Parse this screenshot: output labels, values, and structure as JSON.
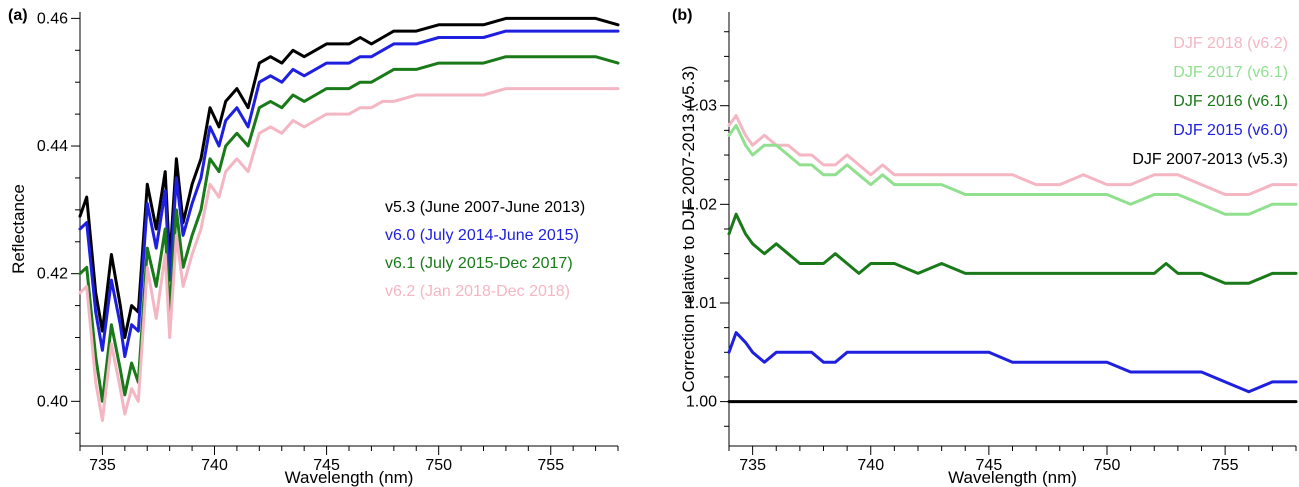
{
  "figure": {
    "panels": [
      "(a)",
      "(b)"
    ]
  },
  "chart_data": [
    {
      "type": "line",
      "panel_label": "(a)",
      "xlabel": "Wavelength (nm)",
      "ylabel": "Reflectance",
      "xlim": [
        734,
        758
      ],
      "ylim": [
        0.393,
        0.461
      ],
      "xticks": [
        735,
        740,
        745,
        750,
        755
      ],
      "yticks": [
        0.4,
        0.42,
        0.44,
        0.46
      ],
      "ytick_labels": [
        "0.40",
        "0.42",
        "0.44",
        "0.46"
      ],
      "legend_position": "center-right",
      "x": [
        734.0,
        734.3,
        734.7,
        735.0,
        735.4,
        735.8,
        736.0,
        736.3,
        736.6,
        737.0,
        737.4,
        737.8,
        738.0,
        738.3,
        738.6,
        739.0,
        739.4,
        739.8,
        740.2,
        740.5,
        741.0,
        741.5,
        742.0,
        742.5,
        743.0,
        743.5,
        744.0,
        744.5,
        745.0,
        745.5,
        746.0,
        746.5,
        747.0,
        747.5,
        748.0,
        749.0,
        750.0,
        751.0,
        752.0,
        753.0,
        754.0,
        755.0,
        756.0,
        757.0,
        758.0
      ],
      "series": [
        {
          "name": "v5.3 (June 2007-June 2013)",
          "color": "#000000",
          "values": [
            0.429,
            0.432,
            0.417,
            0.411,
            0.423,
            0.415,
            0.41,
            0.415,
            0.414,
            0.434,
            0.427,
            0.436,
            0.422,
            0.438,
            0.428,
            0.434,
            0.438,
            0.446,
            0.443,
            0.447,
            0.449,
            0.446,
            0.453,
            0.454,
            0.453,
            0.455,
            0.454,
            0.455,
            0.456,
            0.456,
            0.456,
            0.457,
            0.456,
            0.457,
            0.458,
            0.458,
            0.459,
            0.459,
            0.459,
            0.46,
            0.46,
            0.46,
            0.46,
            0.46,
            0.459
          ]
        },
        {
          "name": "v6.0 (July 2014-June 2015)",
          "color": "#1f1fe0",
          "values": [
            0.427,
            0.428,
            0.414,
            0.408,
            0.419,
            0.412,
            0.407,
            0.412,
            0.411,
            0.431,
            0.424,
            0.433,
            0.419,
            0.435,
            0.426,
            0.431,
            0.435,
            0.443,
            0.44,
            0.444,
            0.446,
            0.443,
            0.45,
            0.451,
            0.45,
            0.452,
            0.451,
            0.452,
            0.453,
            0.453,
            0.453,
            0.454,
            0.454,
            0.455,
            0.456,
            0.456,
            0.457,
            0.457,
            0.457,
            0.458,
            0.458,
            0.458,
            0.458,
            0.458,
            0.458
          ]
        },
        {
          "name": "v6.1 (July 2015-Dec 2017)",
          "color": "#1a7a1a",
          "values": [
            0.42,
            0.421,
            0.407,
            0.4,
            0.412,
            0.405,
            0.401,
            0.406,
            0.403,
            0.424,
            0.418,
            0.427,
            0.414,
            0.43,
            0.421,
            0.426,
            0.43,
            0.438,
            0.436,
            0.44,
            0.442,
            0.44,
            0.446,
            0.447,
            0.446,
            0.448,
            0.447,
            0.448,
            0.449,
            0.449,
            0.449,
            0.45,
            0.45,
            0.451,
            0.452,
            0.452,
            0.453,
            0.453,
            0.453,
            0.454,
            0.454,
            0.454,
            0.454,
            0.454,
            0.453
          ]
        },
        {
          "name": "v6.2 (Jan 2018-Dec 2018)",
          "color": "#f5b6c4",
          "values": [
            0.417,
            0.418,
            0.403,
            0.397,
            0.409,
            0.402,
            0.398,
            0.402,
            0.4,
            0.421,
            0.413,
            0.423,
            0.41,
            0.426,
            0.418,
            0.423,
            0.427,
            0.434,
            0.432,
            0.436,
            0.438,
            0.436,
            0.442,
            0.443,
            0.442,
            0.444,
            0.443,
            0.444,
            0.445,
            0.445,
            0.445,
            0.446,
            0.446,
            0.447,
            0.447,
            0.448,
            0.448,
            0.448,
            0.448,
            0.449,
            0.449,
            0.449,
            0.449,
            0.449,
            0.449
          ]
        }
      ]
    },
    {
      "type": "line",
      "panel_label": "(b)",
      "xlabel": "Wavelength (nm)",
      "ylabel": "Correction relative to DJF 2007-2013 (v5.3)",
      "xlim": [
        734,
        758
      ],
      "ylim": [
        0.9955,
        1.0395
      ],
      "xticks": [
        735,
        740,
        745,
        750,
        755
      ],
      "yticks": [
        1.0,
        1.01,
        1.02,
        1.03
      ],
      "ytick_labels": [
        "1.00",
        "1.01",
        "1.02",
        "1.03"
      ],
      "legend_position": "top-right",
      "x": [
        734.0,
        734.3,
        734.7,
        735.0,
        735.5,
        736.0,
        736.5,
        737.0,
        737.5,
        738.0,
        738.5,
        739.0,
        739.5,
        740.0,
        740.5,
        741.0,
        742.0,
        743.0,
        744.0,
        745.0,
        746.0,
        747.0,
        748.0,
        749.0,
        750.0,
        751.0,
        752.0,
        752.5,
        753.0,
        754.0,
        755.0,
        756.0,
        757.0,
        758.0
      ],
      "series": [
        {
          "name": "DJF 2018 (v6.2)",
          "color": "#f5b6c4",
          "values": [
            1.028,
            1.029,
            1.027,
            1.026,
            1.027,
            1.026,
            1.026,
            1.025,
            1.025,
            1.024,
            1.024,
            1.025,
            1.024,
            1.023,
            1.024,
            1.023,
            1.023,
            1.023,
            1.023,
            1.023,
            1.023,
            1.022,
            1.022,
            1.023,
            1.022,
            1.022,
            1.023,
            1.023,
            1.023,
            1.022,
            1.021,
            1.021,
            1.022,
            1.022
          ]
        },
        {
          "name": "DJF 2017 (v6.1)",
          "color": "#90e090",
          "values": [
            1.027,
            1.028,
            1.026,
            1.025,
            1.026,
            1.026,
            1.025,
            1.024,
            1.024,
            1.023,
            1.023,
            1.024,
            1.023,
            1.022,
            1.023,
            1.022,
            1.022,
            1.022,
            1.021,
            1.021,
            1.021,
            1.021,
            1.021,
            1.021,
            1.021,
            1.02,
            1.021,
            1.021,
            1.021,
            1.02,
            1.019,
            1.019,
            1.02,
            1.02
          ]
        },
        {
          "name": "DJF 2016 (v6.1)",
          "color": "#1a7a1a",
          "values": [
            1.017,
            1.019,
            1.017,
            1.016,
            1.015,
            1.016,
            1.015,
            1.014,
            1.014,
            1.014,
            1.015,
            1.014,
            1.013,
            1.014,
            1.014,
            1.014,
            1.013,
            1.014,
            1.013,
            1.013,
            1.013,
            1.013,
            1.013,
            1.013,
            1.013,
            1.013,
            1.013,
            1.014,
            1.013,
            1.013,
            1.012,
            1.012,
            1.013,
            1.013
          ]
        },
        {
          "name": "DJF 2015 (v6.0)",
          "color": "#1f1fe0",
          "values": [
            1.005,
            1.007,
            1.006,
            1.005,
            1.004,
            1.005,
            1.005,
            1.005,
            1.005,
            1.004,
            1.004,
            1.005,
            1.005,
            1.005,
            1.005,
            1.005,
            1.005,
            1.005,
            1.005,
            1.005,
            1.004,
            1.004,
            1.004,
            1.004,
            1.004,
            1.003,
            1.003,
            1.003,
            1.003,
            1.003,
            1.002,
            1.001,
            1.002,
            1.002
          ]
        },
        {
          "name": "DJF 2007-2013 (v5.3)",
          "color": "#000000",
          "values": [
            1.0,
            1.0,
            1.0,
            1.0,
            1.0,
            1.0,
            1.0,
            1.0,
            1.0,
            1.0,
            1.0,
            1.0,
            1.0,
            1.0,
            1.0,
            1.0,
            1.0,
            1.0,
            1.0,
            1.0,
            1.0,
            1.0,
            1.0,
            1.0,
            1.0,
            1.0,
            1.0,
            1.0,
            1.0,
            1.0,
            1.0,
            1.0,
            1.0,
            1.0
          ]
        }
      ]
    }
  ]
}
